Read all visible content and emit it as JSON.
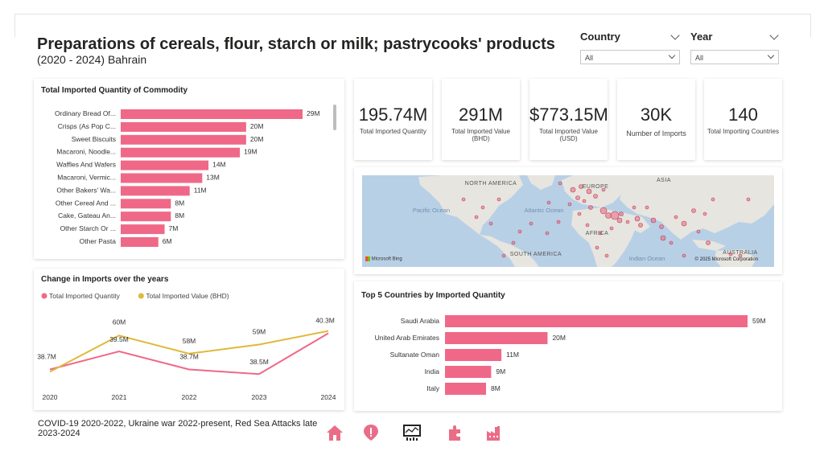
{
  "header": {
    "title": "Preparations of cereals, flour, starch or milk; pastrycooks' products",
    "subtitle": "(2020 - 2024) Bahrain"
  },
  "filters": {
    "country": {
      "label": "Country",
      "value": "All"
    },
    "year": {
      "label": "Year",
      "value": "All"
    }
  },
  "kpis": [
    {
      "value": "195.74M",
      "caption": "Total Imported Quantity"
    },
    {
      "value": "291M",
      "caption": "Total Imported Value (BHD)"
    },
    {
      "value": "$773.15M",
      "caption": "Total Imported Value (USD)"
    },
    {
      "value": "30K",
      "caption": "Number of Imports"
    },
    {
      "value": "140",
      "caption": "Total Importing Countries"
    }
  ],
  "map": {
    "labels": [
      "NORTH AMERICA",
      "EUROPE",
      "ASIA",
      "Pacific Ocean",
      "Atlantic Ocean",
      "AFRICA",
      "SOUTH AMERICA",
      "Indian Ocean",
      "AUSTRALIA"
    ],
    "attribution_left": "Microsoft Bing",
    "attribution_right": "© 2025 Microsoft Corporation",
    "colors": {
      "water": "#b8d0e6",
      "land": "#e7e5df",
      "bubble": "#e8677f"
    }
  },
  "footnote": "COVID-19 2020-2022, Ukraine war 2022-present, Red Sea Attacks late 2023-2024",
  "nav_icons": [
    "home-icon",
    "alert-icon",
    "monitor-chart-icon",
    "puzzle-icon",
    "factory-icon"
  ],
  "accent_color": "#f06887",
  "chart_data": [
    {
      "type": "bar",
      "orientation": "horizontal",
      "title": "Total Imported Quantity of Commodity",
      "categories": [
        "Ordinary Bread Of...",
        "Crisps (As Pop C...",
        "Sweet Biscuits",
        "Macaroni, Noodle...",
        "Waffles And Wafers",
        "Macaroni, Vermic...",
        "Other Bakers' Wa...",
        "Other Cereal And ...",
        "Cake, Gateau An...",
        "Other Starch Or ...",
        "Other Pasta"
      ],
      "values": [
        29,
        20,
        20,
        19,
        14,
        13,
        11,
        8,
        8,
        7,
        6
      ],
      "labels": [
        "29M",
        "20M",
        "20M",
        "19M",
        "14M",
        "13M",
        "11M",
        "8M",
        "8M",
        "7M",
        "6M"
      ],
      "color": "#f06887"
    },
    {
      "type": "line",
      "title": "Change in Imports over the years",
      "legend_position": "top-left",
      "x": [
        "2020",
        "2021",
        "2022",
        "2023",
        "2024"
      ],
      "series": [
        {
          "name": "Total Imported Quantity",
          "color": "#f06887",
          "values": [
            38.7,
            39.5,
            38.7,
            38.5,
            40.3
          ]
        },
        {
          "name": "Total Imported Value (BHD)",
          "color": "#e0b93a",
          "values": [
            56,
            60,
            58,
            59,
            60.5
          ]
        }
      ],
      "data_labels": [
        {
          "series": 0,
          "index": 0,
          "text": "38.7M"
        },
        {
          "series": 1,
          "index": 1,
          "text": "60M"
        },
        {
          "series": 0,
          "index": 1,
          "text": "39.5M"
        },
        {
          "series": 1,
          "index": 2,
          "text": "58M"
        },
        {
          "series": 0,
          "index": 2,
          "text": "38.7M"
        },
        {
          "series": 1,
          "index": 3,
          "text": "59M"
        },
        {
          "series": 0,
          "index": 3,
          "text": "38.5M"
        },
        {
          "series": 0,
          "index": 4,
          "text": "40.3M"
        }
      ]
    },
    {
      "type": "bar",
      "orientation": "horizontal",
      "title": "Top 5 Countries by Imported Quantity",
      "categories": [
        "Saudi Arabia",
        "United Arab Emirates",
        "Sultanate Oman",
        "India",
        "Italy"
      ],
      "values": [
        59,
        20,
        11,
        9,
        8
      ],
      "labels": [
        "59M",
        "20M",
        "11M",
        "9M",
        "8M"
      ],
      "color": "#f06887"
    }
  ]
}
